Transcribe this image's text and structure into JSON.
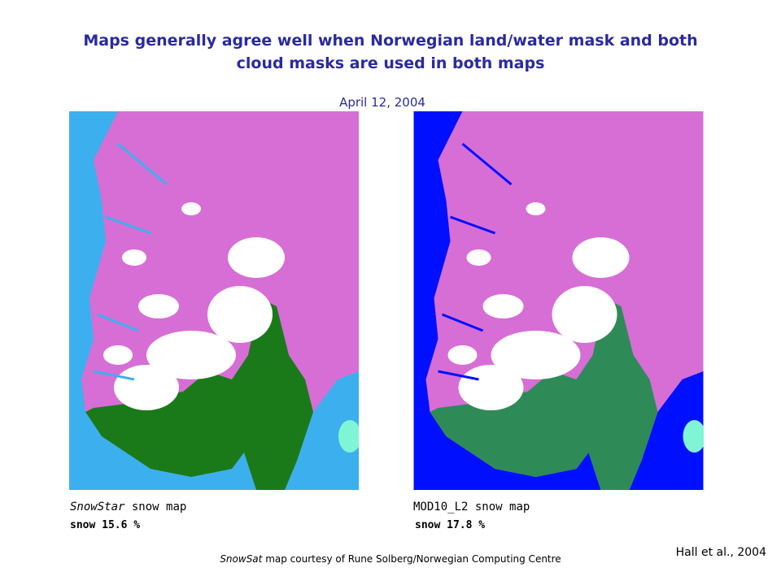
{
  "slide": {
    "title": [
      "Maps generally agree well when Norwegian land/water mask and both",
      "cloud masks are used in both maps"
    ],
    "date": "April 12, 2004",
    "left_map": {
      "name": "SnowStar",
      "caption": "snow map",
      "stat": "snow 15.6 %"
    },
    "right_map": {
      "name": "MOD10_L2",
      "caption": "snow map",
      "stat": "snow 17.8 %"
    },
    "credit": {
      "name": "SnowSat",
      "text": "map courtesy of Rune Solberg/Norwegian Computing Centre"
    },
    "citation": "Hall et al., 2004"
  }
}
